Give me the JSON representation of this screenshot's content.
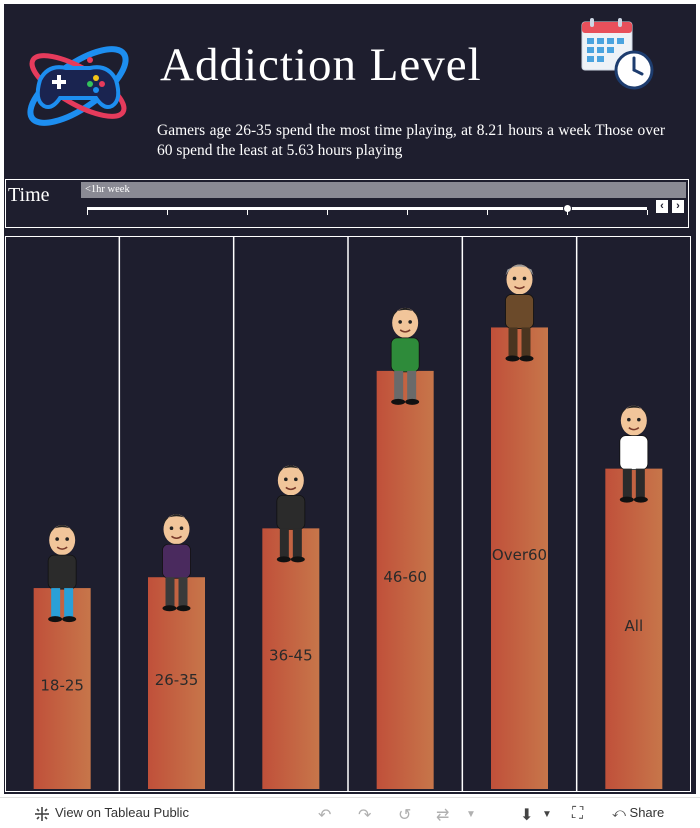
{
  "header": {
    "title": "Addiction Level",
    "subtitle": "Gamers age 26-35 spend the most time playing, at 8.21 hours a week Those over 60 spend the least at 5.63 hours playing"
  },
  "filter": {
    "label": "Time",
    "value": "<1hr week",
    "slider_steps": 8,
    "slider_selected_index": 6
  },
  "icons": {
    "logo": "gamepad-logo-icon",
    "calendar": "calendar-clock-icon"
  },
  "colors": {
    "background": "#1e1e2e",
    "bar_start": "#c0503a",
    "bar_end": "#c7764a",
    "divider": "#ffffff"
  },
  "chart_data": {
    "type": "bar",
    "categories": [
      "18-25",
      "26-35",
      "36-45",
      "46-60",
      "Over60",
      "All"
    ],
    "values": [
      37,
      39,
      48,
      77,
      85,
      59
    ],
    "ylim": [
      0,
      100
    ],
    "grid": false,
    "legend": "none"
  },
  "footer": {
    "view_link": "View on Tableau Public",
    "share": "Share"
  }
}
